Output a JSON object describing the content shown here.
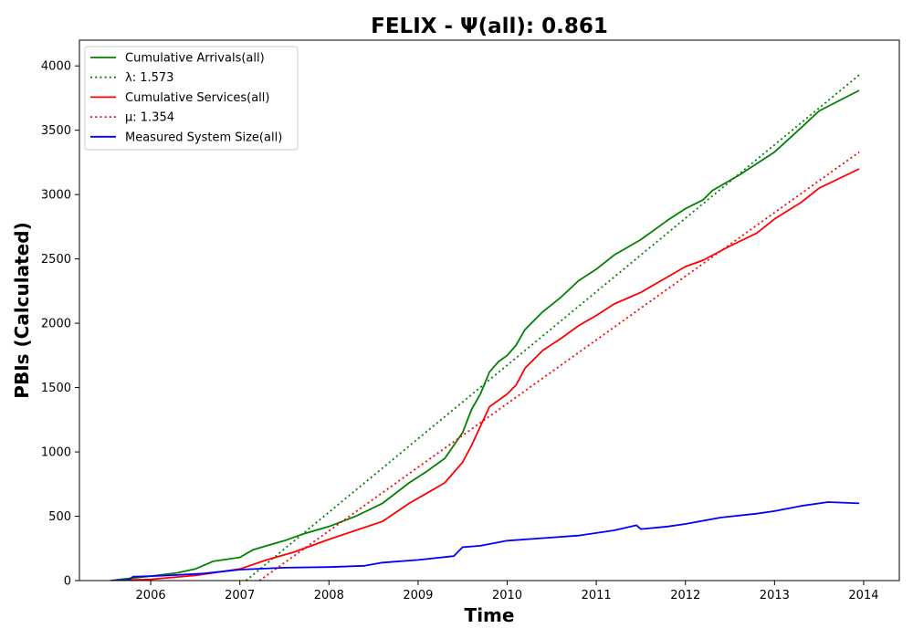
{
  "chart_data": {
    "type": "line",
    "title": "FELIX -  Ψ(all): 0.861",
    "xlabel": "Time",
    "ylabel": "PBIs (Calculated)",
    "xlim": [
      2005.2,
      2014.4
    ],
    "ylim": [
      0,
      4200
    ],
    "x_ticks": [
      2006,
      2007,
      2008,
      2009,
      2010,
      2011,
      2012,
      2013,
      2014
    ],
    "x_tick_labels": [
      "2006",
      "2007",
      "2008",
      "2009",
      "2010",
      "2011",
      "2012",
      "2013",
      "2014"
    ],
    "y_ticks": [
      0,
      500,
      1000,
      1500,
      2000,
      2500,
      3000,
      3500,
      4000
    ],
    "y_tick_labels": [
      "0",
      "500",
      "1000",
      "1500",
      "2000",
      "2500",
      "3000",
      "3500",
      "4000"
    ],
    "grid": false,
    "legend_position": "top-left",
    "series": [
      {
        "name": "Cumulative Arrivals(all)",
        "color": "#008000",
        "style": "solid",
        "x": [
          2005.55,
          2005.8,
          2006.0,
          2006.3,
          2006.5,
          2006.7,
          2007.0,
          2007.15,
          2007.3,
          2007.5,
          2007.7,
          2008.0,
          2008.3,
          2008.6,
          2008.9,
          2009.1,
          2009.3,
          2009.5,
          2009.6,
          2009.7,
          2009.8,
          2009.9,
          2010.0,
          2010.1,
          2010.2,
          2010.4,
          2010.6,
          2010.8,
          2011.0,
          2011.2,
          2011.5,
          2011.8,
          2012.0,
          2012.2,
          2012.3,
          2012.6,
          2013.0,
          2013.3,
          2013.5,
          2013.95
        ],
        "y": [
          0,
          20,
          35,
          60,
          90,
          150,
          180,
          240,
          270,
          310,
          360,
          420,
          500,
          600,
          760,
          850,
          950,
          1150,
          1330,
          1450,
          1620,
          1700,
          1750,
          1830,
          1950,
          2090,
          2200,
          2330,
          2420,
          2530,
          2650,
          2800,
          2890,
          2960,
          3030,
          3150,
          3330,
          3520,
          3650,
          3810
        ]
      },
      {
        "name": "λ: 1.573",
        "color": "#008000",
        "style": "dotted",
        "x": [
          2007.07,
          2013.95
        ],
        "y": [
          0,
          3930
        ]
      },
      {
        "name": "Cumulative Services(all)",
        "color": "#ff0000",
        "style": "solid",
        "x": [
          2005.55,
          2006.0,
          2006.5,
          2007.0,
          2007.3,
          2007.6,
          2008.0,
          2008.3,
          2008.6,
          2008.9,
          2009.1,
          2009.3,
          2009.5,
          2009.6,
          2009.7,
          2009.8,
          2010.0,
          2010.1,
          2010.2,
          2010.4,
          2010.6,
          2010.8,
          2011.0,
          2011.2,
          2011.5,
          2011.8,
          2012.0,
          2012.2,
          2012.5,
          2012.8,
          2013.0,
          2013.3,
          2013.5,
          2013.95
        ],
        "y": [
          0,
          10,
          40,
          90,
          160,
          220,
          320,
          390,
          460,
          600,
          680,
          760,
          920,
          1050,
          1200,
          1350,
          1450,
          1520,
          1650,
          1790,
          1880,
          1980,
          2060,
          2150,
          2240,
          2360,
          2440,
          2490,
          2600,
          2700,
          2810,
          2940,
          3050,
          3200
        ]
      },
      {
        "name": "μ: 1.354",
        "color": "#ff0000",
        "style": "dotted",
        "x": [
          2007.22,
          2013.95
        ],
        "y": [
          0,
          3330
        ]
      },
      {
        "name": "Measured System Size(all)",
        "color": "#0000ff",
        "style": "solid",
        "x": [
          2005.55,
          2005.75,
          2005.8,
          2006.2,
          2006.6,
          2007.0,
          2007.5,
          2008.0,
          2008.4,
          2008.6,
          2009.0,
          2009.4,
          2009.5,
          2009.7,
          2010.0,
          2010.4,
          2010.8,
          2011.2,
          2011.45,
          2011.5,
          2011.8,
          2012.0,
          2012.4,
          2012.8,
          2013.0,
          2013.3,
          2013.6,
          2013.95
        ],
        "y": [
          0,
          5,
          30,
          40,
          55,
          85,
          100,
          105,
          115,
          140,
          160,
          190,
          260,
          270,
          310,
          330,
          350,
          390,
          430,
          400,
          420,
          440,
          490,
          520,
          540,
          580,
          610,
          600
        ]
      }
    ]
  }
}
